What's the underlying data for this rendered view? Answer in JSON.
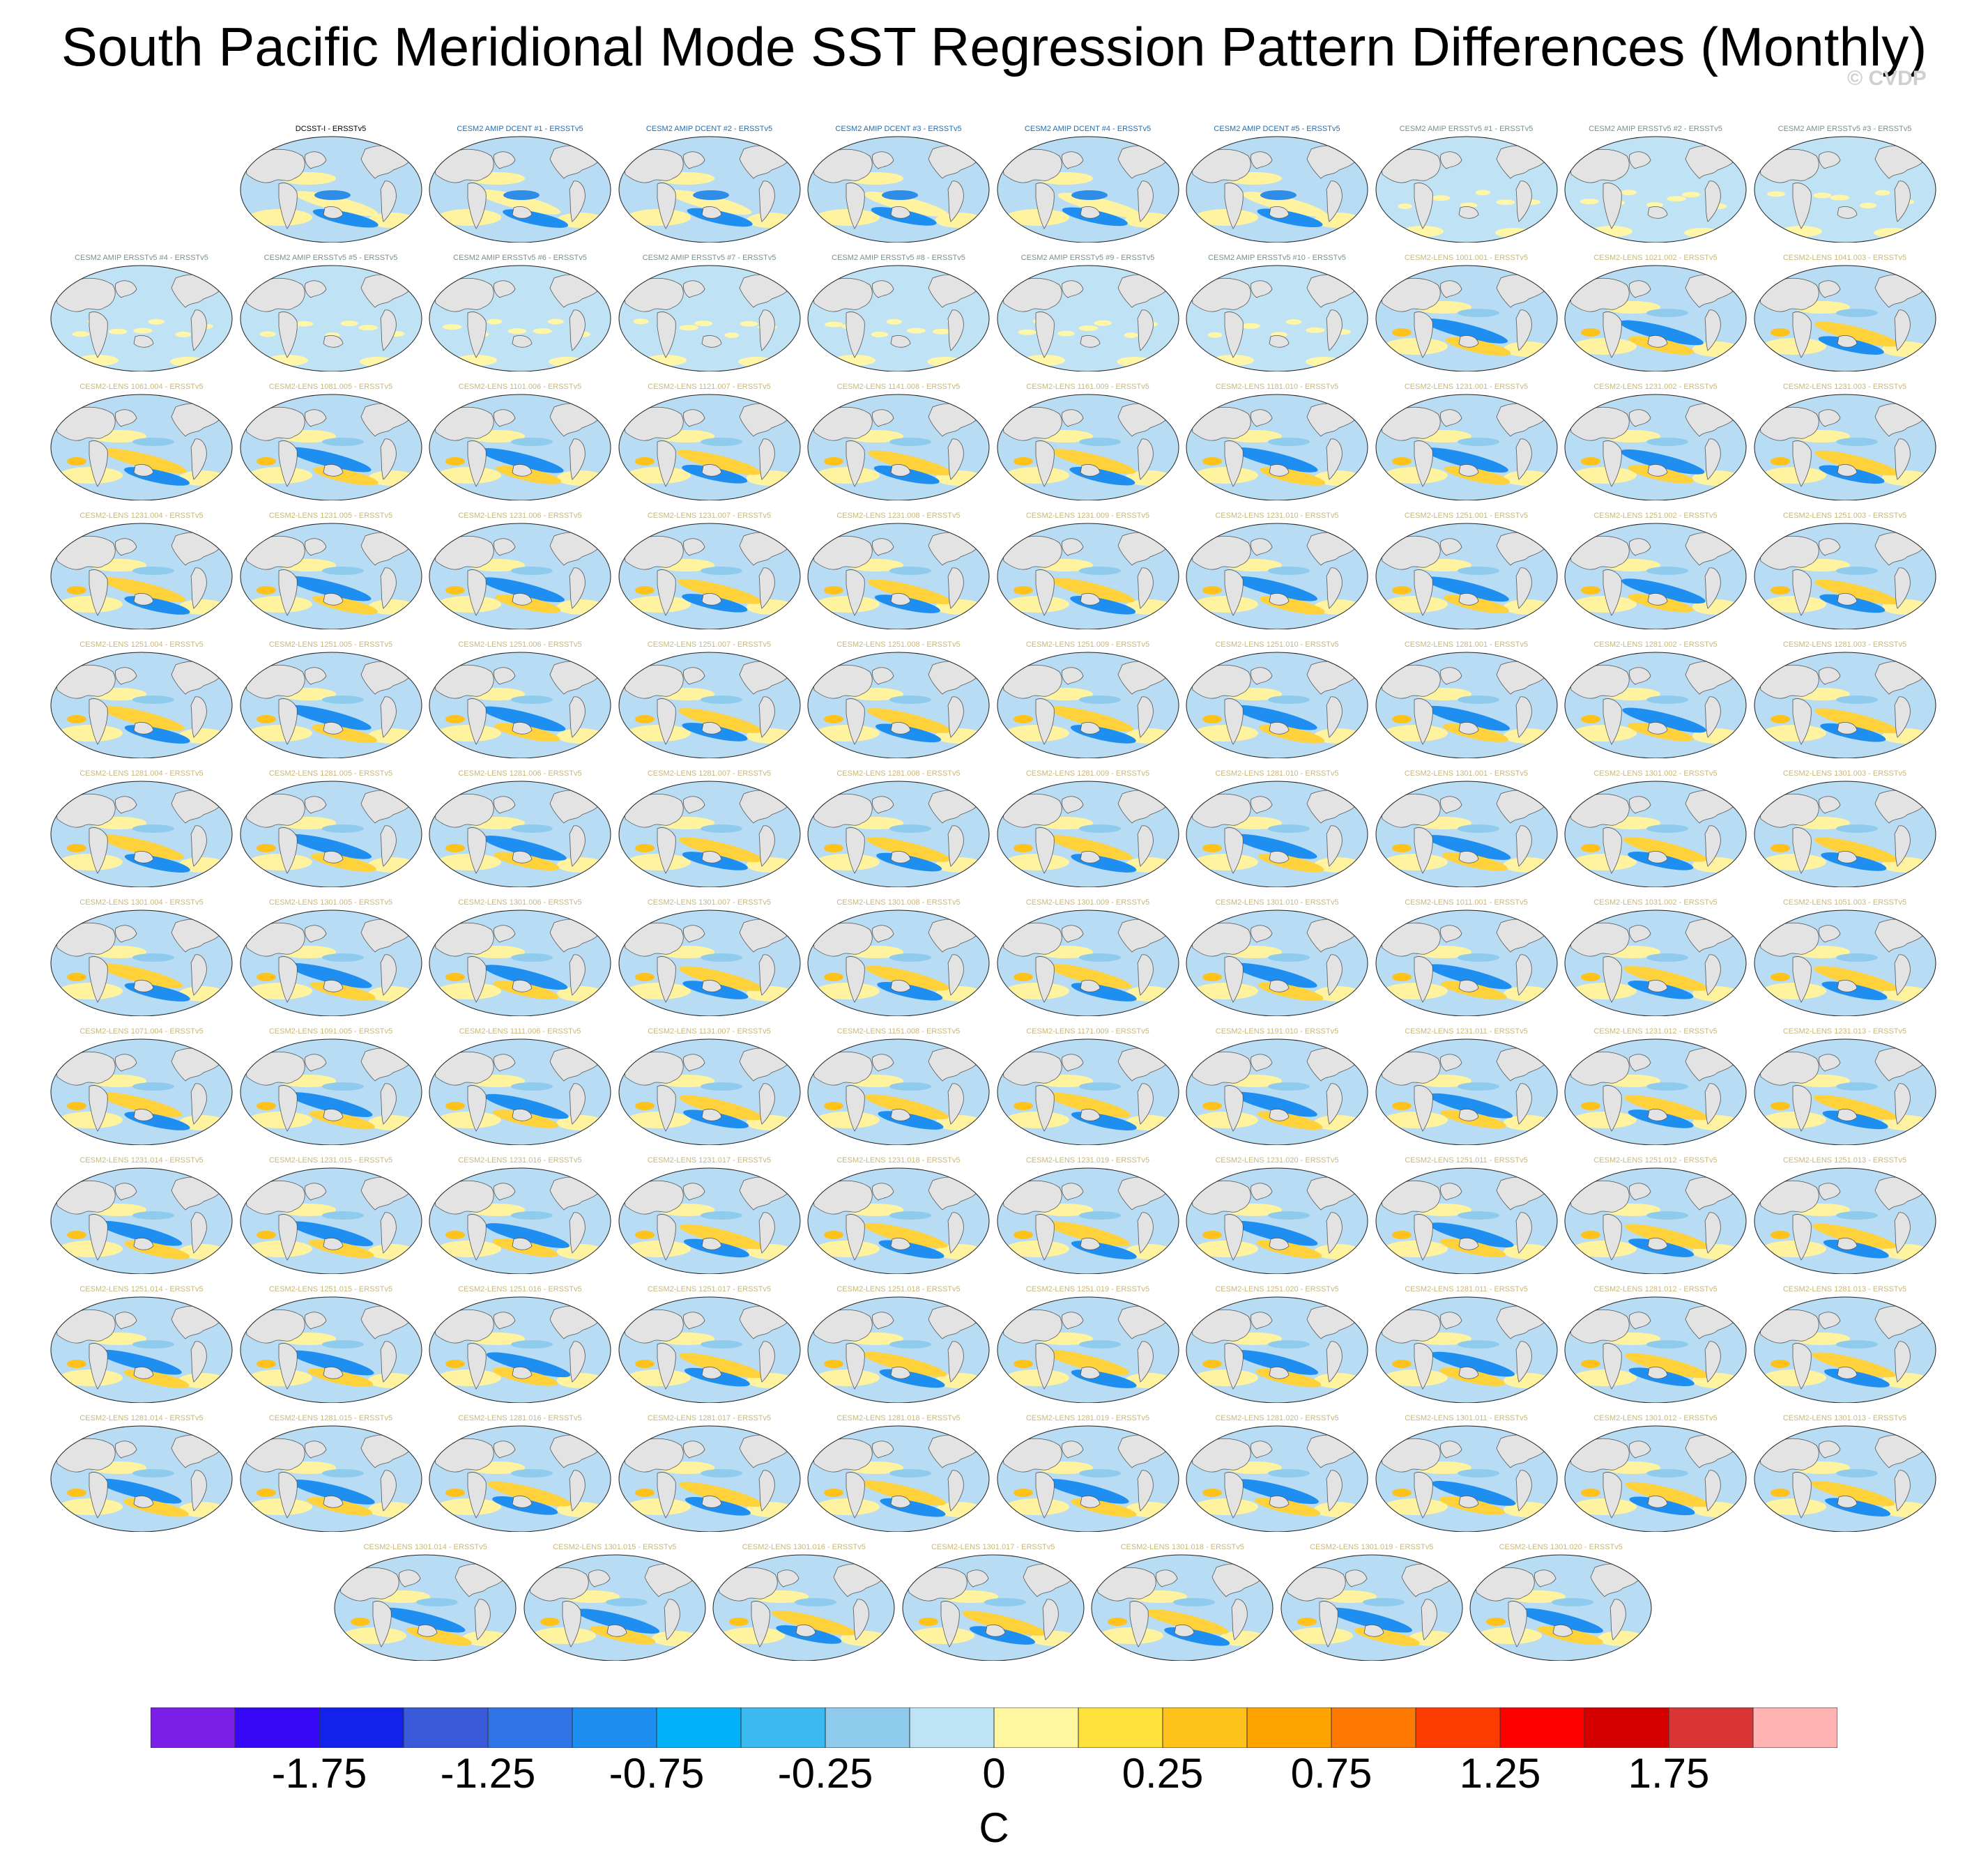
{
  "title": "South Pacific Meridional Mode SST Regression Pattern Differences (Monthly)",
  "credit": "© CVDP",
  "panel_rows": [
    {
      "offset": 1,
      "panels": [
        {
          "label": "DCSST-I - ERSSTv5",
          "color": "#000000",
          "style": "obs"
        },
        {
          "label": "CESM2 AMIP DCENT #1 - ERSSTv5",
          "color": "#1f6fb4",
          "style": "dcent"
        },
        {
          "label": "CESM2 AMIP DCENT #2 - ERSSTv5",
          "color": "#1f6fb4",
          "style": "dcent"
        },
        {
          "label": "CESM2 AMIP DCENT #3 - ERSSTv5",
          "color": "#1f6fb4",
          "style": "dcent"
        },
        {
          "label": "CESM2 AMIP DCENT #4 - ERSSTv5",
          "color": "#1f6fb4",
          "style": "dcent"
        },
        {
          "label": "CESM2 AMIP DCENT #5 - ERSSTv5",
          "color": "#1f6fb4",
          "style": "dcent"
        },
        {
          "label": "CESM2 AMIP ERSSTv5 #1 - ERSSTv5",
          "color": "#7a8f8f",
          "style": "amip"
        },
        {
          "label": "CESM2 AMIP ERSSTv5 #2 - ERSSTv5",
          "color": "#7a8f8f",
          "style": "amip"
        },
        {
          "label": "CESM2 AMIP ERSSTv5 #3 - ERSSTv5",
          "color": "#7a8f8f",
          "style": "amip"
        }
      ]
    },
    {
      "offset": 0,
      "panels": [
        {
          "label": "CESM2 AMIP ERSSTv5 #4 - ERSSTv5",
          "color": "#7a8f8f",
          "style": "amip"
        },
        {
          "label": "CESM2 AMIP ERSSTv5 #5 - ERSSTv5",
          "color": "#7a8f8f",
          "style": "amip"
        },
        {
          "label": "CESM2 AMIP ERSSTv5 #6 - ERSSTv5",
          "color": "#7a8f8f",
          "style": "amip"
        },
        {
          "label": "CESM2 AMIP ERSSTv5 #7 - ERSSTv5",
          "color": "#7a8f8f",
          "style": "amip"
        },
        {
          "label": "CESM2 AMIP ERSSTv5 #8 - ERSSTv5",
          "color": "#7a8f8f",
          "style": "amip"
        },
        {
          "label": "CESM2 AMIP ERSSTv5 #9 - ERSSTv5",
          "color": "#7a8f8f",
          "style": "amip"
        },
        {
          "label": "CESM2 AMIP ERSSTv5 #10 - ERSSTv5",
          "color": "#7a8f8f",
          "style": "amip"
        },
        {
          "label": "CESM2-LENS 1001.001 - ERSSTv5",
          "color": "#c9b77a",
          "style": "lens"
        },
        {
          "label": "CESM2-LENS 1021.002 - ERSSTv5",
          "color": "#c9b77a",
          "style": "lens"
        },
        {
          "label": "CESM2-LENS 1041.003 - ERSSTv5",
          "color": "#c9b77a",
          "style": "lens"
        }
      ]
    },
    {
      "offset": 0,
      "panels": [
        {
          "label": "CESM2-LENS 1061.004 - ERSSTv5",
          "color": "#c9b77a",
          "style": "lens"
        },
        {
          "label": "CESM2-LENS 1081.005 - ERSSTv5",
          "color": "#c9b77a",
          "style": "lens"
        },
        {
          "label": "CESM2-LENS 1101.006 - ERSSTv5",
          "color": "#c9b77a",
          "style": "lens"
        },
        {
          "label": "CESM2-LENS 1121.007 - ERSSTv5",
          "color": "#c9b77a",
          "style": "lens"
        },
        {
          "label": "CESM2-LENS 1141.008 - ERSSTv5",
          "color": "#c9b77a",
          "style": "lens"
        },
        {
          "label": "CESM2-LENS 1161.009 - ERSSTv5",
          "color": "#c9b77a",
          "style": "lens"
        },
        {
          "label": "CESM2-LENS 1181.010 - ERSSTv5",
          "color": "#c9b77a",
          "style": "lens"
        },
        {
          "label": "CESM2-LENS 1231.001 - ERSSTv5",
          "color": "#c9b77a",
          "style": "lens"
        },
        {
          "label": "CESM2-LENS 1231.002 - ERSSTv5",
          "color": "#c9b77a",
          "style": "lens"
        },
        {
          "label": "CESM2-LENS 1231.003 - ERSSTv5",
          "color": "#c9b77a",
          "style": "lens"
        }
      ]
    },
    {
      "offset": 0,
      "panels": [
        {
          "label": "CESM2-LENS 1231.004 - ERSSTv5",
          "color": "#c9b77a",
          "style": "lens"
        },
        {
          "label": "CESM2-LENS 1231.005 - ERSSTv5",
          "color": "#c9b77a",
          "style": "lens"
        },
        {
          "label": "CESM2-LENS 1231.006 - ERSSTv5",
          "color": "#c9b77a",
          "style": "lens"
        },
        {
          "label": "CESM2-LENS 1231.007 - ERSSTv5",
          "color": "#c9b77a",
          "style": "lens"
        },
        {
          "label": "CESM2-LENS 1231.008 - ERSSTv5",
          "color": "#c9b77a",
          "style": "lens"
        },
        {
          "label": "CESM2-LENS 1231.009 - ERSSTv5",
          "color": "#c9b77a",
          "style": "lens"
        },
        {
          "label": "CESM2-LENS 1231.010 - ERSSTv5",
          "color": "#c9b77a",
          "style": "lens"
        },
        {
          "label": "CESM2-LENS 1251.001 - ERSSTv5",
          "color": "#c9b77a",
          "style": "lens"
        },
        {
          "label": "CESM2-LENS 1251.002 - ERSSTv5",
          "color": "#c9b77a",
          "style": "lens"
        },
        {
          "label": "CESM2-LENS 1251.003 - ERSSTv5",
          "color": "#c9b77a",
          "style": "lens"
        }
      ]
    },
    {
      "offset": 0,
      "panels": [
        {
          "label": "CESM2-LENS 1251.004 - ERSSTv5",
          "color": "#c9b77a",
          "style": "lens"
        },
        {
          "label": "CESM2-LENS 1251.005 - ERSSTv5",
          "color": "#c9b77a",
          "style": "lens"
        },
        {
          "label": "CESM2-LENS 1251.006 - ERSSTv5",
          "color": "#c9b77a",
          "style": "lens"
        },
        {
          "label": "CESM2-LENS 1251.007 - ERSSTv5",
          "color": "#c9b77a",
          "style": "lens"
        },
        {
          "label": "CESM2-LENS 1251.008 - ERSSTv5",
          "color": "#c9b77a",
          "style": "lens"
        },
        {
          "label": "CESM2-LENS 1251.009 - ERSSTv5",
          "color": "#c9b77a",
          "style": "lens"
        },
        {
          "label": "CESM2-LENS 1251.010 - ERSSTv5",
          "color": "#c9b77a",
          "style": "lens"
        },
        {
          "label": "CESM2-LENS 1281.001 - ERSSTv5",
          "color": "#c9b77a",
          "style": "lens"
        },
        {
          "label": "CESM2-LENS 1281.002 - ERSSTv5",
          "color": "#c9b77a",
          "style": "lens"
        },
        {
          "label": "CESM2-LENS 1281.003 - ERSSTv5",
          "color": "#c9b77a",
          "style": "lens"
        }
      ]
    },
    {
      "offset": 0,
      "panels": [
        {
          "label": "CESM2-LENS 1281.004 - ERSSTv5",
          "color": "#c9b77a",
          "style": "lens"
        },
        {
          "label": "CESM2-LENS 1281.005 - ERSSTv5",
          "color": "#c9b77a",
          "style": "lens"
        },
        {
          "label": "CESM2-LENS 1281.006 - ERSSTv5",
          "color": "#c9b77a",
          "style": "lens"
        },
        {
          "label": "CESM2-LENS 1281.007 - ERSSTv5",
          "color": "#c9b77a",
          "style": "lens"
        },
        {
          "label": "CESM2-LENS 1281.008 - ERSSTv5",
          "color": "#c9b77a",
          "style": "lens"
        },
        {
          "label": "CESM2-LENS 1281.009 - ERSSTv5",
          "color": "#c9b77a",
          "style": "lens"
        },
        {
          "label": "CESM2-LENS 1281.010 - ERSSTv5",
          "color": "#c9b77a",
          "style": "lens"
        },
        {
          "label": "CESM2-LENS 1301.001 - ERSSTv5",
          "color": "#c9b77a",
          "style": "lens"
        },
        {
          "label": "CESM2-LENS 1301.002 - ERSSTv5",
          "color": "#c9b77a",
          "style": "lens"
        },
        {
          "label": "CESM2-LENS 1301.003 - ERSSTv5",
          "color": "#c9b77a",
          "style": "lens"
        }
      ]
    },
    {
      "offset": 0,
      "panels": [
        {
          "label": "CESM2-LENS 1301.004 - ERSSTv5",
          "color": "#c9b77a",
          "style": "lens"
        },
        {
          "label": "CESM2-LENS 1301.005 - ERSSTv5",
          "color": "#c9b77a",
          "style": "lens"
        },
        {
          "label": "CESM2-LENS 1301.006 - ERSSTv5",
          "color": "#c9b77a",
          "style": "lens"
        },
        {
          "label": "CESM2-LENS 1301.007 - ERSSTv5",
          "color": "#c9b77a",
          "style": "lens"
        },
        {
          "label": "CESM2-LENS 1301.008 - ERSSTv5",
          "color": "#c9b77a",
          "style": "lens"
        },
        {
          "label": "CESM2-LENS 1301.009 - ERSSTv5",
          "color": "#c9b77a",
          "style": "lens"
        },
        {
          "label": "CESM2-LENS 1301.010 - ERSSTv5",
          "color": "#c9b77a",
          "style": "lens"
        },
        {
          "label": "CESM2-LENS 1011.001 - ERSSTv5",
          "color": "#c9b77a",
          "style": "lens"
        },
        {
          "label": "CESM2-LENS 1031.002 - ERSSTv5",
          "color": "#c9b77a",
          "style": "lens"
        },
        {
          "label": "CESM2-LENS 1051.003 - ERSSTv5",
          "color": "#c9b77a",
          "style": "lens"
        }
      ]
    },
    {
      "offset": 0,
      "panels": [
        {
          "label": "CESM2-LENS 1071.004 - ERSSTv5",
          "color": "#c9b77a",
          "style": "lens"
        },
        {
          "label": "CESM2-LENS 1091.005 - ERSSTv5",
          "color": "#c9b77a",
          "style": "lens"
        },
        {
          "label": "CESM2-LENS 1111.006 - ERSSTv5",
          "color": "#c9b77a",
          "style": "lens"
        },
        {
          "label": "CESM2-LENS 1131.007 - ERSSTv5",
          "color": "#c9b77a",
          "style": "lens"
        },
        {
          "label": "CESM2-LENS 1151.008 - ERSSTv5",
          "color": "#c9b77a",
          "style": "lens"
        },
        {
          "label": "CESM2-LENS 1171.009 - ERSSTv5",
          "color": "#c9b77a",
          "style": "lens"
        },
        {
          "label": "CESM2-LENS 1191.010 - ERSSTv5",
          "color": "#c9b77a",
          "style": "lens"
        },
        {
          "label": "CESM2-LENS 1231.011 - ERSSTv5",
          "color": "#c9b77a",
          "style": "lens"
        },
        {
          "label": "CESM2-LENS 1231.012 - ERSSTv5",
          "color": "#c9b77a",
          "style": "lens"
        },
        {
          "label": "CESM2-LENS 1231.013 - ERSSTv5",
          "color": "#c9b77a",
          "style": "lens"
        }
      ]
    },
    {
      "offset": 0,
      "panels": [
        {
          "label": "CESM2-LENS 1231.014 - ERSSTv5",
          "color": "#c9b77a",
          "style": "lens"
        },
        {
          "label": "CESM2-LENS 1231.015 - ERSSTv5",
          "color": "#c9b77a",
          "style": "lens"
        },
        {
          "label": "CESM2-LENS 1231.016 - ERSSTv5",
          "color": "#c9b77a",
          "style": "lens"
        },
        {
          "label": "CESM2-LENS 1231.017 - ERSSTv5",
          "color": "#c9b77a",
          "style": "lens"
        },
        {
          "label": "CESM2-LENS 1231.018 - ERSSTv5",
          "color": "#c9b77a",
          "style": "lens"
        },
        {
          "label": "CESM2-LENS 1231.019 - ERSSTv5",
          "color": "#c9b77a",
          "style": "lens"
        },
        {
          "label": "CESM2-LENS 1231.020 - ERSSTv5",
          "color": "#c9b77a",
          "style": "lens"
        },
        {
          "label": "CESM2-LENS 1251.011 - ERSSTv5",
          "color": "#c9b77a",
          "style": "lens"
        },
        {
          "label": "CESM2-LENS 1251.012 - ERSSTv5",
          "color": "#c9b77a",
          "style": "lens"
        },
        {
          "label": "CESM2-LENS 1251.013 - ERSSTv5",
          "color": "#c9b77a",
          "style": "lens"
        }
      ]
    },
    {
      "offset": 0,
      "panels": [
        {
          "label": "CESM2-LENS 1251.014 - ERSSTv5",
          "color": "#c9b77a",
          "style": "lens"
        },
        {
          "label": "CESM2-LENS 1251.015 - ERSSTv5",
          "color": "#c9b77a",
          "style": "lens"
        },
        {
          "label": "CESM2-LENS 1251.016 - ERSSTv5",
          "color": "#c9b77a",
          "style": "lens"
        },
        {
          "label": "CESM2-LENS 1251.017 - ERSSTv5",
          "color": "#c9b77a",
          "style": "lens"
        },
        {
          "label": "CESM2-LENS 1251.018 - ERSSTv5",
          "color": "#c9b77a",
          "style": "lens"
        },
        {
          "label": "CESM2-LENS 1251.019 - ERSSTv5",
          "color": "#c9b77a",
          "style": "lens"
        },
        {
          "label": "CESM2-LENS 1251.020 - ERSSTv5",
          "color": "#c9b77a",
          "style": "lens"
        },
        {
          "label": "CESM2-LENS 1281.011 - ERSSTv5",
          "color": "#c9b77a",
          "style": "lens"
        },
        {
          "label": "CESM2-LENS 1281.012 - ERSSTv5",
          "color": "#c9b77a",
          "style": "lens"
        },
        {
          "label": "CESM2-LENS 1281.013 - ERSSTv5",
          "color": "#c9b77a",
          "style": "lens"
        }
      ]
    },
    {
      "offset": 0,
      "panels": [
        {
          "label": "CESM2-LENS 1281.014 - ERSSTv5",
          "color": "#c9b77a",
          "style": "lens"
        },
        {
          "label": "CESM2-LENS 1281.015 - ERSSTv5",
          "color": "#c9b77a",
          "style": "lens"
        },
        {
          "label": "CESM2-LENS 1281.016 - ERSSTv5",
          "color": "#c9b77a",
          "style": "lens"
        },
        {
          "label": "CESM2-LENS 1281.017 - ERSSTv5",
          "color": "#c9b77a",
          "style": "lens"
        },
        {
          "label": "CESM2-LENS 1281.018 - ERSSTv5",
          "color": "#c9b77a",
          "style": "lens"
        },
        {
          "label": "CESM2-LENS 1281.019 - ERSSTv5",
          "color": "#c9b77a",
          "style": "lens"
        },
        {
          "label": "CESM2-LENS 1281.020 - ERSSTv5",
          "color": "#c9b77a",
          "style": "lens"
        },
        {
          "label": "CESM2-LENS 1301.011 - ERSSTv5",
          "color": "#c9b77a",
          "style": "lens"
        },
        {
          "label": "CESM2-LENS 1301.012 - ERSSTv5",
          "color": "#c9b77a",
          "style": "lens"
        },
        {
          "label": "CESM2-LENS 1301.013 - ERSSTv5",
          "color": "#c9b77a",
          "style": "lens"
        }
      ]
    },
    {
      "offset": 1.5,
      "panels": [
        {
          "label": "CESM2-LENS 1301.014 - ERSSTv5",
          "color": "#c9b77a",
          "style": "lens"
        },
        {
          "label": "CESM2-LENS 1301.015 - ERSSTv5",
          "color": "#c9b77a",
          "style": "lens"
        },
        {
          "label": "CESM2-LENS 1301.016 - ERSSTv5",
          "color": "#c9b77a",
          "style": "lens"
        },
        {
          "label": "CESM2-LENS 1301.017 - ERSSTv5",
          "color": "#c9b77a",
          "style": "lens"
        },
        {
          "label": "CESM2-LENS 1301.018 - ERSSTv5",
          "color": "#c9b77a",
          "style": "lens"
        },
        {
          "label": "CESM2-LENS 1301.019 - ERSSTv5",
          "color": "#c9b77a",
          "style": "lens"
        },
        {
          "label": "CESM2-LENS 1301.020 - ERSSTv5",
          "color": "#c9b77a",
          "style": "lens"
        }
      ]
    }
  ],
  "colorbar": {
    "colors": [
      "#7b1fe8",
      "#3608f5",
      "#1322ea",
      "#3a5bd9",
      "#2e74e6",
      "#1e8ff0",
      "#04b1fb",
      "#3bbaf1",
      "#8ecbec",
      "#bde3f5",
      "#fff7a0",
      "#ffe13b",
      "#ffc21a",
      "#ffa300",
      "#ff7a00",
      "#ff3c00",
      "#ff0000",
      "#d40000",
      "#d93535",
      "#ffb3b3"
    ],
    "tick_labels": [
      "-1.75",
      "-1.25",
      "-0.75",
      "-0.25",
      "0",
      "0.25",
      "0.75",
      "1.25",
      "1.75"
    ],
    "tick_boundaries": [
      2,
      4,
      6,
      8,
      10,
      12,
      14,
      16,
      18
    ],
    "unit": "C"
  }
}
